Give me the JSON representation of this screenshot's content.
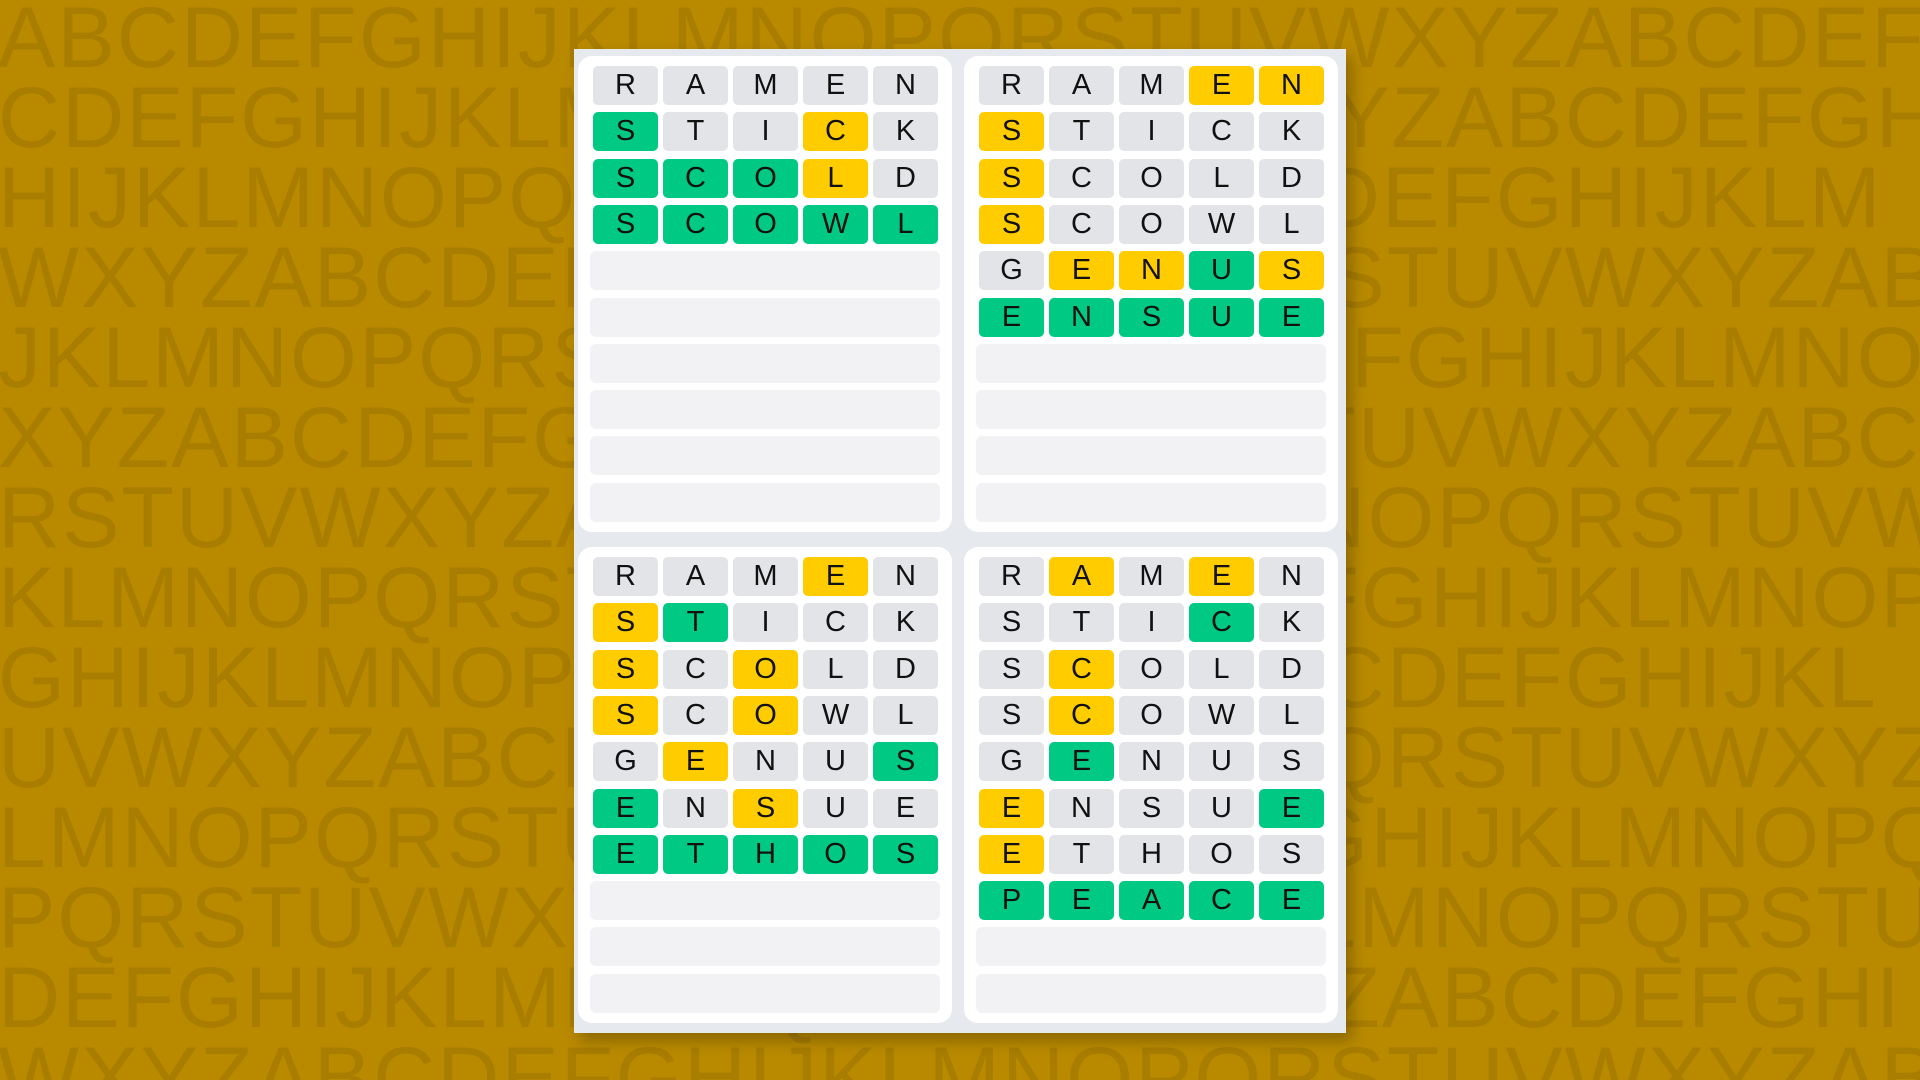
{
  "background_rows": [
    "ABCDEFGHIJKLMNOPQRSTUVWXYZABCDEF",
    "CDEFGHIJKLMNOPQRSTUVWXYZABCDEFGH",
    "HIJKLMNOPQRSTUVWXYZABCDEFGHIJKLM",
    "WXYZABCDEFGHIJKLMNOPQRSTUVWXYZAB",
    "JKLMNOPQRSTUVWXYZABCDEFGHIJKLMNO",
    "XYZABCDEFGHIJKLMNOPQRSTUVWXYZABC",
    "RSTUVWXYZABCDEFGHIJKLMNOPQRSTUVW",
    "KLMNOPQRSTUVWXYZABCDEFGHIJKLMNOP",
    "GHIJKLMNOPQRSTUVWXYZABCDEFGHIJKL",
    "UVWXYZABCDEFGHIJKLMNOPQRSTUVWXYZ",
    "LMNOPQRSTUVWXYZABCDEFGHIJKLMNOPQ",
    "PQRSTUVWXYZABCDEFGHIJKLMNOPQRSTU",
    "DEFGHIJKLMNOPQRSTUVWXYZABCDEFGHI",
    "WXYZABCDEFGHIJKLMNOPQRSTUVWXYZAB"
  ],
  "colors": {
    "correct": "#00c983",
    "present": "#ffcc00",
    "absent": "#e3e4e8",
    "background": "#b98a00"
  },
  "total_rows": 10,
  "boards": [
    {
      "guesses": [
        {
          "word": "RAMEN",
          "pattern": "xxxxx"
        },
        {
          "word": "STICK",
          "pattern": "gxxyx"
        },
        {
          "word": "SCOLD",
          "pattern": "gggyx"
        },
        {
          "word": "SCOWL",
          "pattern": "ggggg"
        }
      ]
    },
    {
      "guesses": [
        {
          "word": "RAMEN",
          "pattern": "xxxyy"
        },
        {
          "word": "STICK",
          "pattern": "yxxxx"
        },
        {
          "word": "SCOLD",
          "pattern": "yxxxx"
        },
        {
          "word": "SCOWL",
          "pattern": "yxxxx"
        },
        {
          "word": "GENUS",
          "pattern": "xyygy"
        },
        {
          "word": "ENSUE",
          "pattern": "ggggg"
        }
      ]
    },
    {
      "guesses": [
        {
          "word": "RAMEN",
          "pattern": "xxxyx"
        },
        {
          "word": "STICK",
          "pattern": "ygxxx"
        },
        {
          "word": "SCOLD",
          "pattern": "yxyxx"
        },
        {
          "word": "SCOWL",
          "pattern": "yxyxx"
        },
        {
          "word": "GENUS",
          "pattern": "xyxxg"
        },
        {
          "word": "ENSUE",
          "pattern": "gxyxx"
        },
        {
          "word": "ETHOS",
          "pattern": "ggggg"
        }
      ]
    },
    {
      "guesses": [
        {
          "word": "RAMEN",
          "pattern": "xyxyx"
        },
        {
          "word": "STICK",
          "pattern": "xxxgx"
        },
        {
          "word": "SCOLD",
          "pattern": "xyxxx"
        },
        {
          "word": "SCOWL",
          "pattern": "xyxxx"
        },
        {
          "word": "GENUS",
          "pattern": "xgxxx"
        },
        {
          "word": "ENSUE",
          "pattern": "yxxxg"
        },
        {
          "word": "ETHOS",
          "pattern": "yxxxx"
        },
        {
          "word": "PEACE",
          "pattern": "ggggg"
        }
      ]
    }
  ]
}
